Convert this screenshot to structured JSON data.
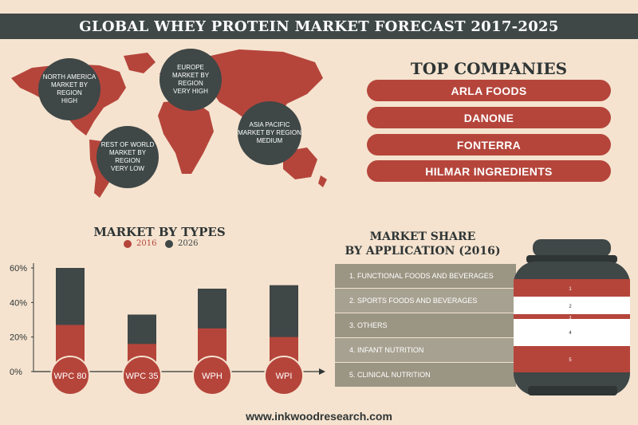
{
  "title": "GLOBAL WHEY PROTEIN MARKET FORECAST 2017-2025",
  "regions": [
    {
      "name": "NORTH AMERICA",
      "sub": "MARKET BY REGION",
      "level": "HIGH"
    },
    {
      "name": "EUROPE",
      "sub": "MARKET BY REGION",
      "level": "VERY HIGH"
    },
    {
      "name": "ASIA PACIFIC",
      "sub": "MARKET BY REGION",
      "level": "MEDIUM"
    },
    {
      "name": "REST OF WORLD",
      "sub": "MARKET BY REGION",
      "level": "VERY LOW"
    }
  ],
  "top_companies": {
    "title": "TOP COMPANIES",
    "items": [
      "ARLA FOODS",
      "DANONE",
      "FONTERRA",
      "HILMAR INGREDIENTS"
    ]
  },
  "market_by_types": {
    "title": "MARKET BY TYPES",
    "legend_2016": "2016",
    "legend_2026": "2026"
  },
  "chart_data": {
    "type": "bar",
    "title": "MARKET BY TYPES",
    "categories": [
      "WPC 80",
      "WPC 35",
      "WPH",
      "WPI"
    ],
    "series": [
      {
        "name": "2016",
        "values": [
          27,
          16,
          25,
          20
        ],
        "color": "#b5453b"
      },
      {
        "name": "2026",
        "values": [
          60,
          33,
          48,
          50
        ],
        "color": "#3f4747"
      }
    ],
    "y_ticks": [
      "60%",
      "40%",
      "20%",
      "0%"
    ],
    "ylim": [
      0,
      60
    ],
    "stacking": "overlay",
    "legend": "top"
  },
  "market_share": {
    "title_line1": "MARKET SHARE",
    "title_line2": "BY APPLICATION (2016)",
    "items": [
      "1. FUNCTIONAL FOODS AND BEVERAGES",
      "2. SPORTS FOODS AND BEVERAGES",
      "3. OTHERS",
      "4. INFANT NUTRITION",
      "5. CLINICAL NUTRITION"
    ],
    "jar_labels": [
      "1",
      "2",
      "3",
      "4",
      "5"
    ]
  },
  "colors": {
    "accent": "#b5453b",
    "dark": "#3f4747",
    "background": "#f5e3cf",
    "gray": "#9b9583"
  },
  "url": "www.inkwoodresearch.com"
}
